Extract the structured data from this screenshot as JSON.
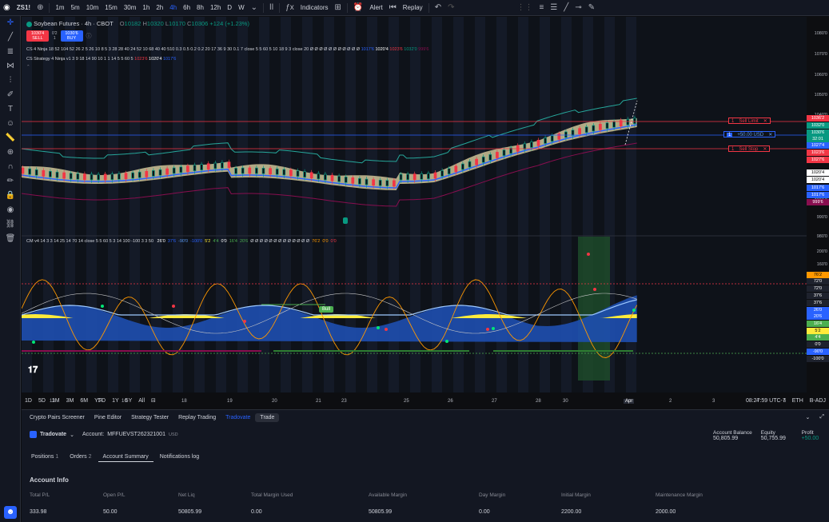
{
  "topbar": {
    "symbol": "ZS1!",
    "timeframes": [
      "1m",
      "5m",
      "10m",
      "15m",
      "30m",
      "1h",
      "2h",
      "4h",
      "6h",
      "8h",
      "12h",
      "D",
      "W"
    ],
    "active_timeframe": "4h",
    "indicators_label": "Indicators",
    "alert_label": "Alert",
    "replay_label": "Replay"
  },
  "legend": {
    "title": "Soybean Futures · 4h · CBOT",
    "ohlc": {
      "o_label": "O",
      "o": "10182",
      "h_label": "H",
      "h": "10320",
      "l_label": "L",
      "l": "10170",
      "c_label": "C",
      "c": "10306",
      "chg": "+124 (+1.23%)"
    },
    "sell_price": "1030'4",
    "sell_label": "SELL",
    "spread": "0'2",
    "qty": "1",
    "buy_price": "1030'6",
    "buy_label": "BUY",
    "ind1": "CS 4 Ninja 18 52 104 52 26 2 5 26 10 8 5 3 28 28 40 24 52 10 68 40 40 510 0.3 0.5 0.2 0.2 20 17 36 9 30 0.1 7 close 5 5 60 5 10 18 9 3 close 20",
    "ind1_vals": [
      "1017'6",
      "1020'4",
      "1023'6",
      "1032'0",
      "999'6"
    ],
    "ind2": "CS Strategy 4 Ninja v1 3 9 18 14 90 10 1 1 14 5 5 60 5",
    "ind2_vals": [
      "1023'6",
      "1020'4",
      "1017'6"
    ]
  },
  "price_scale": {
    "labels": [
      "1080'0",
      "1070'0",
      "1060'0",
      "1050'0",
      "1040'0",
      "1000'0",
      "990'0",
      "980'0"
    ],
    "tags": [
      {
        "text": "1036'2",
        "color": "#f23645"
      },
      {
        "text": "1032'0",
        "color": "#089981"
      },
      {
        "text": "1030'6",
        "color": "#089981"
      },
      {
        "text": "32:01",
        "color": "#089981"
      },
      {
        "text": "1027'4",
        "color": "#2962ff"
      },
      {
        "text": "1023'6",
        "color": "#f23645"
      },
      {
        "text": "1027'6",
        "color": "#f23645"
      },
      {
        "text": "1020'4",
        "color": "#ffffff"
      },
      {
        "text": "1020'4",
        "color": "#ffffff"
      },
      {
        "text": "1017'6",
        "color": "#2962ff"
      },
      {
        "text": "1017'6",
        "color": "#2962ff"
      },
      {
        "text": "999'6",
        "color": "#880e4f"
      }
    ]
  },
  "orders": {
    "sell_limit": {
      "qty": "1",
      "label": "Sell Limit"
    },
    "position": {
      "qty": "1",
      "label": "+50.00 USD"
    },
    "sell_stop": {
      "qty": "1",
      "label": "Sell Stop"
    }
  },
  "osc": {
    "legend": "CM v4 14 3 3 14 25 14 70 14 close 5 5 60 5 3 14 100 -100 3 3 50",
    "vals": [
      {
        "t": "26'0",
        "c": "#ffffff"
      },
      {
        "t": "37'6",
        "c": "#2962ff"
      },
      {
        "t": "-90'0",
        "c": "#5b9cf6"
      },
      {
        "t": "-100'0",
        "c": "#2962ff"
      },
      {
        "t": "5'2",
        "c": "#ffeb3b"
      },
      {
        "t": "4'4",
        "c": "#4caf50"
      },
      {
        "t": "0'0",
        "c": "#ffffff"
      },
      {
        "t": "16'4",
        "c": "#4caf50"
      },
      {
        "t": "20'6",
        "c": "#4caf50"
      },
      {
        "t": "Ø Ø Ø Ø Ø Ø Ø Ø Ø Ø Ø Ø Ø",
        "c": "#d1d4dc"
      },
      {
        "t": "76'2",
        "c": "#ff9800"
      },
      {
        "t": "0'0",
        "c": "#ff9800"
      },
      {
        "t": "0'0",
        "c": "#f23645"
      }
    ],
    "scale_labels": [
      "200'0",
      "160'0",
      "120'0",
      "80'0",
      "40'0",
      "0'0",
      "-40'0",
      "-80'0",
      "-120'0",
      "-160'0"
    ],
    "bull_label": "Bull",
    "tags": [
      {
        "text": "76'2",
        "color": "#ff9800"
      },
      {
        "text": "72'0",
        "color": "#1e222d"
      },
      {
        "text": "72'0",
        "color": "#1e222d"
      },
      {
        "text": "37'6",
        "color": "#1e222d"
      },
      {
        "text": "37'6",
        "color": "#1e222d"
      },
      {
        "text": "26'0",
        "color": "#2962ff"
      },
      {
        "text": "20'6",
        "color": "#2962ff"
      },
      {
        "text": "16'4",
        "color": "#4caf50"
      },
      {
        "text": "5'2",
        "color": "#ffeb3b"
      },
      {
        "text": "4'4",
        "color": "#4caf50"
      },
      {
        "text": "0'0",
        "color": "#1e222d"
      },
      {
        "text": "-90'0",
        "color": "#2962ff"
      },
      {
        "text": "-100'0",
        "color": "#1e222d"
      }
    ]
  },
  "time_axis": [
    "13",
    "14",
    "16",
    "18",
    "19",
    "20",
    "21",
    "23",
    "25",
    "26",
    "27",
    "28",
    "30",
    "Apr",
    "2",
    "3",
    "4",
    "6"
  ],
  "range_bar": {
    "ranges": [
      "1D",
      "5D",
      "1M",
      "3M",
      "6M",
      "YTD",
      "1Y",
      "5Y",
      "All"
    ],
    "clock": "08:27:59 UTC-7",
    "session": "ETH",
    "adj": "B-ADJ"
  },
  "bottom": {
    "tabs": [
      "Crypto Pairs Screener",
      "Pine Editor",
      "Strategy Tester",
      "Replay Trading",
      "Tradovate",
      "Trade"
    ],
    "broker": "Tradovate",
    "account_label": "Account:",
    "account": "MFFUEVST262321001",
    "currency": "USD",
    "balance_label": "Account Balance",
    "balance": "50,805.99",
    "equity_label": "Equity",
    "equity": "50,755.99",
    "profit_label": "Profit",
    "profit": "+50.00",
    "subtabs": [
      {
        "label": "Positions",
        "count": "1"
      },
      {
        "label": "Orders",
        "count": "2"
      },
      {
        "label": "Account Summary",
        "count": ""
      },
      {
        "label": "Notifications log",
        "count": ""
      }
    ],
    "section_title": "Account Info",
    "columns": [
      "Total P/L",
      "Open P/L",
      "Net Liq",
      "Total Margin Used",
      "Available Margin",
      "Day Margin",
      "Initial Margin",
      "Maintenance Margin"
    ],
    "values": [
      "333.98",
      "50.00",
      "50805.99",
      "0.00",
      "50805.99",
      "0.00",
      "2200.00",
      "2000.00"
    ]
  },
  "colors": {
    "up": "#089981",
    "down": "#f23645",
    "accent": "#2962ff"
  }
}
